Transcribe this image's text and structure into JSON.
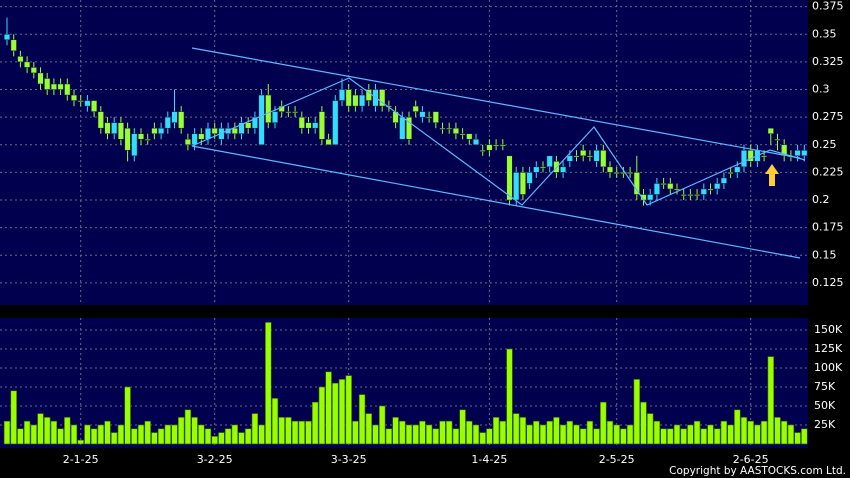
{
  "chart_data": [
    {
      "type": "candlestick",
      "up_color": "#33ddff",
      "down_color": "#99ff33",
      "ylim": [
        0.105,
        0.381
      ],
      "yticks": [
        0.375,
        0.35,
        0.325,
        0.3,
        0.275,
        0.25,
        0.225,
        0.2,
        0.175,
        0.15,
        0.125
      ],
      "grid": true,
      "open": [
        0.345,
        0.345,
        0.33,
        0.325,
        0.32,
        0.315,
        0.31,
        0.305,
        0.305,
        0.305,
        0.295,
        0.29,
        0.285,
        0.29,
        0.28,
        0.27,
        0.26,
        0.27,
        0.265,
        0.24,
        0.26,
        0.255,
        0.265,
        0.26,
        0.265,
        0.27,
        0.28,
        0.255,
        0.25,
        0.26,
        0.255,
        0.265,
        0.255,
        0.26,
        0.265,
        0.26,
        0.27,
        0.265,
        0.25,
        0.295,
        0.27,
        0.285,
        0.28,
        0.28,
        0.275,
        0.27,
        0.265,
        0.28,
        0.255,
        0.25,
        0.29,
        0.3,
        0.295,
        0.285,
        0.3,
        0.285,
        0.3,
        0.285,
        0.28,
        0.255,
        0.275,
        0.285,
        0.275,
        0.275,
        0.28,
        0.265,
        0.265,
        0.265,
        0.26,
        0.26,
        0.25,
        0.245,
        0.25,
        0.25,
        0.25,
        0.24,
        0.2,
        0.225,
        0.215,
        0.225,
        0.23,
        0.23,
        0.235,
        0.225,
        0.235,
        0.24,
        0.245,
        0.24,
        0.235,
        0.245,
        0.23,
        0.225,
        0.225,
        0.225,
        0.225,
        0.205,
        0.2,
        0.205,
        0.215,
        0.215,
        0.21,
        0.205,
        0.205,
        0.205,
        0.205,
        0.21,
        0.21,
        0.215,
        0.225,
        0.225,
        0.23,
        0.245,
        0.235,
        0.24,
        0.265,
        0.255,
        0.25,
        0.24,
        0.24,
        0.24
      ],
      "high": [
        0.365,
        0.35,
        0.335,
        0.33,
        0.325,
        0.32,
        0.315,
        0.31,
        0.31,
        0.31,
        0.3,
        0.295,
        0.295,
        0.29,
        0.285,
        0.275,
        0.275,
        0.275,
        0.27,
        0.265,
        0.265,
        0.26,
        0.27,
        0.27,
        0.28,
        0.3,
        0.285,
        0.26,
        0.265,
        0.265,
        0.27,
        0.27,
        0.27,
        0.27,
        0.27,
        0.275,
        0.275,
        0.28,
        0.3,
        0.305,
        0.285,
        0.29,
        0.285,
        0.285,
        0.28,
        0.275,
        0.275,
        0.285,
        0.26,
        0.295,
        0.31,
        0.305,
        0.3,
        0.3,
        0.305,
        0.305,
        0.3,
        0.29,
        0.285,
        0.28,
        0.28,
        0.29,
        0.285,
        0.28,
        0.28,
        0.27,
        0.27,
        0.27,
        0.265,
        0.26,
        0.26,
        0.25,
        0.255,
        0.255,
        0.255,
        0.24,
        0.23,
        0.23,
        0.23,
        0.235,
        0.235,
        0.24,
        0.24,
        0.235,
        0.245,
        0.245,
        0.25,
        0.245,
        0.25,
        0.25,
        0.235,
        0.23,
        0.23,
        0.23,
        0.24,
        0.21,
        0.21,
        0.22,
        0.22,
        0.22,
        0.215,
        0.21,
        0.21,
        0.21,
        0.215,
        0.215,
        0.22,
        0.225,
        0.23,
        0.235,
        0.25,
        0.25,
        0.25,
        0.245,
        0.265,
        0.26,
        0.255,
        0.245,
        0.25,
        0.25
      ],
      "low": [
        0.34,
        0.33,
        0.32,
        0.315,
        0.31,
        0.3,
        0.295,
        0.295,
        0.295,
        0.29,
        0.285,
        0.285,
        0.28,
        0.275,
        0.26,
        0.255,
        0.255,
        0.25,
        0.235,
        0.235,
        0.25,
        0.25,
        0.255,
        0.255,
        0.26,
        0.265,
        0.26,
        0.245,
        0.245,
        0.25,
        0.25,
        0.255,
        0.25,
        0.255,
        0.255,
        0.255,
        0.26,
        0.26,
        0.25,
        0.265,
        0.265,
        0.275,
        0.275,
        0.275,
        0.26,
        0.26,
        0.26,
        0.25,
        0.25,
        0.25,
        0.285,
        0.28,
        0.28,
        0.28,
        0.285,
        0.28,
        0.28,
        0.28,
        0.265,
        0.255,
        0.25,
        0.275,
        0.27,
        0.27,
        0.265,
        0.26,
        0.26,
        0.255,
        0.255,
        0.25,
        0.25,
        0.24,
        0.24,
        0.245,
        0.245,
        0.195,
        0.195,
        0.2,
        0.21,
        0.22,
        0.225,
        0.225,
        0.22,
        0.22,
        0.23,
        0.235,
        0.235,
        0.235,
        0.23,
        0.225,
        0.22,
        0.22,
        0.22,
        0.22,
        0.2,
        0.195,
        0.195,
        0.2,
        0.21,
        0.205,
        0.205,
        0.2,
        0.2,
        0.2,
        0.2,
        0.205,
        0.205,
        0.21,
        0.22,
        0.22,
        0.225,
        0.23,
        0.23,
        0.235,
        0.25,
        0.245,
        0.235,
        0.235,
        0.235,
        0.235
      ],
      "close": [
        0.35,
        0.335,
        0.325,
        0.32,
        0.315,
        0.305,
        0.3,
        0.3,
        0.3,
        0.295,
        0.29,
        0.29,
        0.29,
        0.28,
        0.265,
        0.26,
        0.27,
        0.255,
        0.245,
        0.26,
        0.255,
        0.255,
        0.26,
        0.265,
        0.275,
        0.28,
        0.265,
        0.25,
        0.26,
        0.255,
        0.265,
        0.26,
        0.265,
        0.265,
        0.26,
        0.27,
        0.265,
        0.275,
        0.295,
        0.27,
        0.28,
        0.28,
        0.28,
        0.28,
        0.265,
        0.265,
        0.27,
        0.255,
        0.25,
        0.29,
        0.3,
        0.285,
        0.285,
        0.295,
        0.29,
        0.3,
        0.285,
        0.285,
        0.27,
        0.275,
        0.255,
        0.28,
        0.28,
        0.275,
        0.27,
        0.265,
        0.265,
        0.26,
        0.26,
        0.255,
        0.255,
        0.245,
        0.245,
        0.25,
        0.25,
        0.2,
        0.225,
        0.205,
        0.225,
        0.23,
        0.23,
        0.24,
        0.225,
        0.23,
        0.24,
        0.24,
        0.24,
        0.24,
        0.245,
        0.23,
        0.225,
        0.225,
        0.225,
        0.225,
        0.205,
        0.2,
        0.205,
        0.215,
        0.215,
        0.21,
        0.21,
        0.205,
        0.205,
        0.205,
        0.21,
        0.21,
        0.215,
        0.22,
        0.225,
        0.23,
        0.245,
        0.235,
        0.245,
        0.24,
        0.26,
        0.255,
        0.24,
        0.24,
        0.245,
        0.245
      ]
    },
    {
      "type": "bar",
      "color": "#99ff00",
      "categories": [
        null,
        null,
        null,
        null,
        null,
        null,
        null,
        null,
        null,
        null,
        null,
        "2-1-25",
        null,
        null,
        null,
        null,
        null,
        null,
        null,
        null,
        null,
        null,
        null,
        null,
        null,
        null,
        null,
        null,
        null,
        null,
        null,
        "3-2-25",
        null,
        null,
        null,
        null,
        null,
        null,
        null,
        null,
        null,
        null,
        null,
        null,
        null,
        null,
        null,
        null,
        null,
        null,
        null,
        "3-3-25",
        null,
        null,
        null,
        null,
        null,
        null,
        null,
        null,
        null,
        null,
        null,
        null,
        null,
        null,
        null,
        null,
        null,
        null,
        null,
        null,
        "1-4-25",
        null,
        null,
        null,
        null,
        null,
        null,
        null,
        null,
        null,
        null,
        null,
        null,
        null,
        null,
        null,
        null,
        null,
        null,
        "2-5-25",
        null,
        null,
        null,
        null,
        null,
        null,
        null,
        null,
        null,
        null,
        null,
        null,
        null,
        null,
        null,
        null,
        null,
        null,
        null,
        "2-6-25",
        null,
        null,
        null,
        null,
        null,
        null,
        null,
        null
      ],
      "values": [
        30000,
        70000,
        20000,
        30000,
        25000,
        40000,
        35000,
        30000,
        20000,
        35000,
        25000,
        5000,
        25000,
        20000,
        25000,
        30000,
        15000,
        25000,
        75000,
        20000,
        25000,
        30000,
        15000,
        20000,
        25000,
        25000,
        35000,
        45000,
        35000,
        25000,
        20000,
        10000,
        15000,
        20000,
        25000,
        15000,
        20000,
        40000,
        25000,
        160000,
        60000,
        35000,
        35000,
        30000,
        30000,
        30000,
        55000,
        75000,
        95000,
        80000,
        85000,
        90000,
        30000,
        65000,
        40000,
        25000,
        50000,
        20000,
        35000,
        30000,
        25000,
        25000,
        30000,
        25000,
        20000,
        30000,
        30000,
        20000,
        45000,
        30000,
        25000,
        15000,
        20000,
        35000,
        30000,
        125000,
        40000,
        35000,
        25000,
        30000,
        25000,
        30000,
        35000,
        25000,
        30000,
        25000,
        20000,
        30000,
        20000,
        55000,
        30000,
        25000,
        20000,
        25000,
        85000,
        55000,
        40000,
        30000,
        20000,
        20000,
        25000,
        20000,
        25000,
        30000,
        20000,
        25000,
        20000,
        30000,
        25000,
        45000,
        35000,
        30000,
        25000,
        30000,
        115000,
        35000,
        30000,
        25000,
        15000,
        20000
      ],
      "ylim": [
        -5300,
        165800
      ],
      "yticks": [
        {
          "value": 25000,
          "label": "25K"
        },
        {
          "value": 50000,
          "label": "50K"
        },
        {
          "value": 75000,
          "label": "75K"
        },
        {
          "value": 100000,
          "label": "100K"
        },
        {
          "value": 125000,
          "label": "125K"
        },
        {
          "value": 150000,
          "label": "150K"
        }
      ],
      "grid": true
    }
  ],
  "footer": "Copyright by AASTOCKS.com Ltd."
}
